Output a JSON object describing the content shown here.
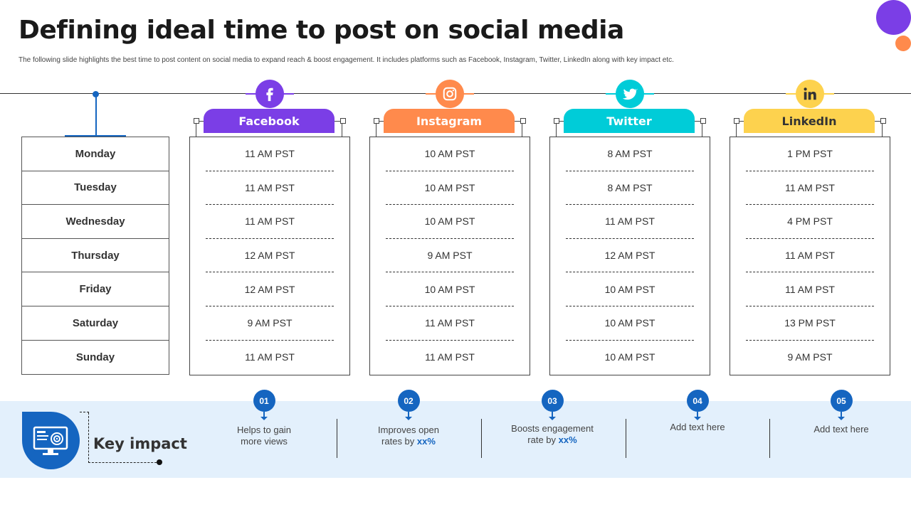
{
  "header": {
    "title": "Defining ideal time to post on social media",
    "subtitle": "The following slide highlights the best time to post content on social media to expand reach & boost engagement. It includes platforms such as Facebook, Instagram, Twitter, LinkedIn along with key impact etc."
  },
  "days": [
    "Monday",
    "Tuesday",
    "Wednesday",
    "Thursday",
    "Friday",
    "Saturday",
    "Sunday"
  ],
  "platforms": [
    {
      "name": "Facebook",
      "icon": "facebook-icon",
      "color": "#7b3ee6",
      "text_color": "#ffffff",
      "times": [
        "11 AM PST",
        "11 AM PST",
        "11 AM PST",
        "12 AM PST",
        "12 AM PST",
        "9 AM PST",
        "11 AM PST"
      ]
    },
    {
      "name": "Instagram",
      "icon": "instagram-icon",
      "color": "#ff8a4c",
      "text_color": "#ffffff",
      "times": [
        "10 AM PST",
        "10 AM PST",
        "10 AM PST",
        "9 AM PST",
        "10 AM PST",
        "11 AM PST",
        "11 AM PST"
      ]
    },
    {
      "name": "Twitter",
      "icon": "twitter-icon",
      "color": "#00ccd8",
      "text_color": "#ffffff",
      "times": [
        "8 AM PST",
        "8 AM PST",
        "11 AM PST",
        "12 AM PST",
        "10 AM PST",
        "10 AM PST",
        "10 AM PST"
      ]
    },
    {
      "name": "LinkedIn",
      "icon": "linkedin-icon",
      "color": "#fdd24e",
      "text_color": "#333333",
      "times": [
        "1 PM PST",
        "11 AM PST",
        "4 PM PST",
        "11 AM PST",
        "11 AM PST",
        "13 PM PST",
        "9 AM PST"
      ]
    }
  ],
  "key_impact": {
    "title": "Key impact",
    "icon": "monitor-target-icon",
    "items": [
      {
        "num": "01",
        "text": "Helps to gain more views",
        "highlight": ""
      },
      {
        "num": "02",
        "text": "Improves open rates by",
        "highlight": "xx%"
      },
      {
        "num": "03",
        "text": "Boosts engagement rate by",
        "highlight": "xx%"
      },
      {
        "num": "04",
        "text": "Add text here",
        "highlight": ""
      },
      {
        "num": "05",
        "text": "Add text here",
        "highlight": ""
      }
    ]
  }
}
